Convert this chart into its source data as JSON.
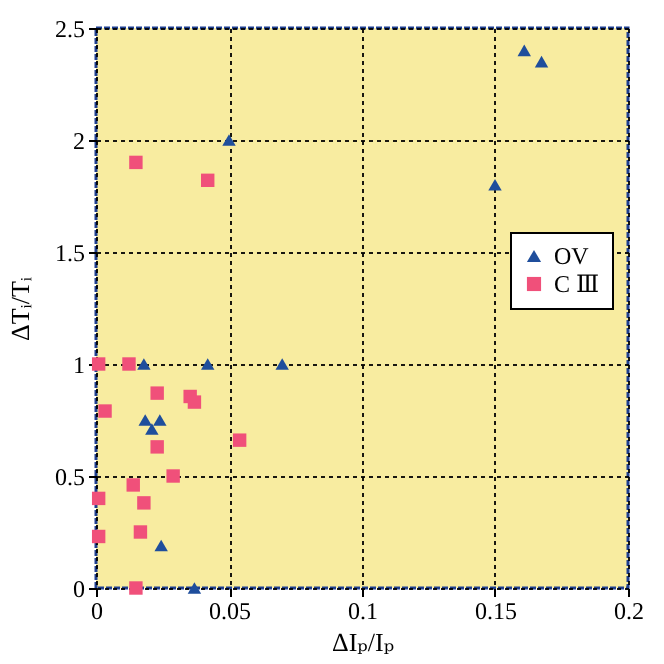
{
  "chart_data": {
    "type": "scatter",
    "xlabel": "ΔIₚ/Iₚ",
    "ylabel": "ΔTᵢ/Tᵢ",
    "xlim": [
      0,
      0.2
    ],
    "xticks": [
      0,
      0.05,
      0.1,
      0.15,
      0.2
    ],
    "ylim": [
      0,
      2.5
    ],
    "yticks": [
      0,
      0.5,
      1,
      1.5,
      2,
      2.5
    ],
    "grid": true,
    "legend": "right",
    "series": [
      {
        "name": "OV",
        "color": "#1f4e9c",
        "marker": "triangle",
        "x": [
          0.05,
          0.018,
          0.042,
          0.07,
          0.0185,
          0.021,
          0.024,
          0.0245,
          0.037,
          0.161,
          0.1675,
          0.15
        ],
        "values": [
          2.0,
          1.0,
          1.0,
          1.0,
          0.75,
          0.71,
          0.75,
          0.19,
          0.0,
          2.4,
          2.35,
          1.8
        ]
      },
      {
        "name": "C Ⅲ",
        "color": "#f0507a",
        "marker": "square",
        "x": [
          0.015,
          0.042,
          0.001,
          0.0124,
          0.023,
          0.0354,
          0.037,
          0.0034,
          0.054,
          0.023,
          0.029,
          0.014,
          0.001,
          0.018,
          0.001,
          0.0167,
          0.015
        ],
        "values": [
          1.9,
          1.82,
          1.0,
          1.0,
          0.87,
          0.855,
          0.83,
          0.79,
          0.66,
          0.63,
          0.5,
          0.46,
          0.4,
          0.38,
          0.23,
          0.25,
          0.0
        ]
      }
    ]
  }
}
